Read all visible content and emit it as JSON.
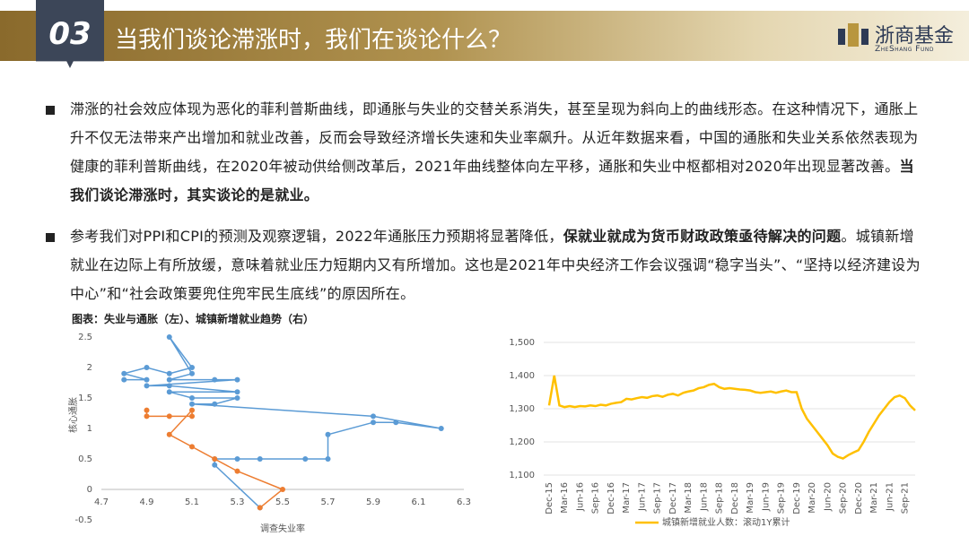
{
  "header": {
    "number": "03",
    "title": "当我们谈论滞涨时，我们在谈论什么？",
    "logo_cn": "浙商基金",
    "logo_en": "ZheShang Fund"
  },
  "bullets": [
    [
      {
        "text": "滞涨的社会效应体现为恶化的菲利普斯曲线，即通胀与失业的交替关系消失，甚至呈现为斜向上的曲线形态。在这种情况下，通胀上升不仅无法带来产出增加和就业改善，反而会导致经济增长失速和失业率飙升。从近年数据来看，中国的通胀和失业关系依然表现为健康的菲利普斯曲线，在2020年被动供给侧改革后，2021年曲线整体向左平移，通胀和失业中枢都相对2020年出现显著改善。",
        "bold": false
      },
      {
        "text": "当我们谈论滞涨时，其实谈论的是就业。",
        "bold": true
      }
    ],
    [
      {
        "text": "参考我们对PPI和CPI的预测及观察逻辑，2022年通胀压力预期将显著降低，",
        "bold": false
      },
      {
        "text": "保就业就成为货币财政政策亟待解决的问题",
        "bold": true
      },
      {
        "text": "。城镇新增就业在边际上有所放缓，意味着就业压力短期内又有所增加。这也是2021年中央经济工作会议强调“稳字当头”、“坚持以经济建设为中心”和“社会政策要兜住兜牢民生底线”的原因所在。",
        "bold": false
      }
    ]
  ],
  "figure_title": "图表：失业与通胀（左）、城镇新增就业趋势（右）",
  "chart_data": [
    {
      "type": "scatter",
      "x_label": "调查失业率",
      "y_label": "核心通胀",
      "xlim": [
        4.7,
        6.3
      ],
      "xticks": [
        4.7,
        4.9,
        5.1,
        5.3,
        5.5,
        5.7,
        5.9,
        6.1,
        6.3
      ],
      "ylim": [
        -0.5,
        2.5
      ],
      "yticks": [
        -0.5,
        0,
        0.5,
        1,
        1.5,
        2,
        2.5
      ],
      "series": [
        {
          "color": "#5b9bd5",
          "x": [
            4.8,
            4.9,
            4.8,
            4.9,
            5.0,
            5.1,
            5.0,
            5.1,
            5.0,
            5.2,
            5.3,
            4.9,
            5.0,
            5.3,
            5.0,
            5.1,
            5.3,
            5.2,
            5.1,
            5.9,
            6.2,
            6.0,
            5.9,
            5.7,
            5.7,
            5.6,
            5.4,
            5.3,
            5.2,
            5.2,
            5.4
          ],
          "values": [
            1.8,
            1.8,
            1.9,
            2.0,
            1.9,
            2.0,
            2.5,
            1.9,
            1.8,
            1.8,
            1.8,
            1.7,
            1.7,
            1.6,
            1.6,
            1.5,
            1.5,
            1.4,
            1.4,
            1.2,
            1.0,
            1.1,
            1.1,
            0.9,
            0.5,
            0.5,
            0.5,
            0.5,
            0.5,
            0.4,
            -0.3
          ]
        },
        {
          "color": "#ed7d31",
          "x": [
            4.9,
            4.9,
            5.0,
            5.1,
            5.1,
            5.0,
            5.1,
            5.2,
            5.3,
            5.5,
            5.4
          ],
          "values": [
            1.3,
            1.2,
            1.2,
            1.2,
            1.3,
            0.9,
            0.7,
            0.5,
            0.3,
            0.0,
            -0.3
          ]
        }
      ]
    },
    {
      "type": "line",
      "grid": true,
      "ylim": [
        1100,
        1500
      ],
      "yticks": [
        {
          "value": 1100,
          "label": "1,100"
        },
        {
          "value": 1200,
          "label": "1,200"
        },
        {
          "value": 1300,
          "label": "1,300"
        },
        {
          "value": 1400,
          "label": "1,400"
        },
        {
          "value": 1500,
          "label": "1,500"
        }
      ],
      "categories": [
        "Dec-15",
        null,
        null,
        "Mar-16",
        null,
        null,
        "Jun-16",
        null,
        null,
        "Sep-16",
        null,
        null,
        "Dec-16",
        null,
        null,
        "Mar-17",
        null,
        null,
        "Jun-17",
        null,
        null,
        "Sep-17",
        null,
        null,
        "Dec-17",
        null,
        null,
        "Mar-18",
        null,
        null,
        "Jun-18",
        null,
        null,
        "Sep-18",
        null,
        null,
        "Dec-18",
        null,
        null,
        "Mar-19",
        null,
        null,
        "Jun-19",
        null,
        null,
        "Sep-19",
        null,
        null,
        "Dec-19",
        null,
        null,
        "Mar-20",
        null,
        null,
        "Jun-20",
        null,
        null,
        "Sep-20",
        null,
        null,
        "Dec-20",
        null,
        null,
        "Mar-21",
        null,
        null,
        "Jun-21",
        null,
        null,
        "Sep-21",
        null,
        null
      ],
      "series": [
        {
          "name": "城镇新增就业人数：滚动1Y累计",
          "color": "#ffc000",
          "values": [
            1310,
            1400,
            1310,
            1305,
            1308,
            1305,
            1308,
            1307,
            1310,
            1308,
            1312,
            1310,
            1315,
            1318,
            1320,
            1330,
            1328,
            1332,
            1335,
            1333,
            1338,
            1340,
            1336,
            1342,
            1345,
            1340,
            1348,
            1352,
            1355,
            1362,
            1365,
            1372,
            1375,
            1365,
            1360,
            1362,
            1360,
            1358,
            1357,
            1355,
            1350,
            1348,
            1350,
            1352,
            1348,
            1352,
            1355,
            1350,
            1350,
            1300,
            1270,
            1250,
            1230,
            1210,
            1190,
            1165,
            1155,
            1150,
            1160,
            1168,
            1175,
            1200,
            1230,
            1255,
            1280,
            1300,
            1320,
            1335,
            1340,
            1332,
            1310,
            1295
          ]
        }
      ]
    }
  ]
}
